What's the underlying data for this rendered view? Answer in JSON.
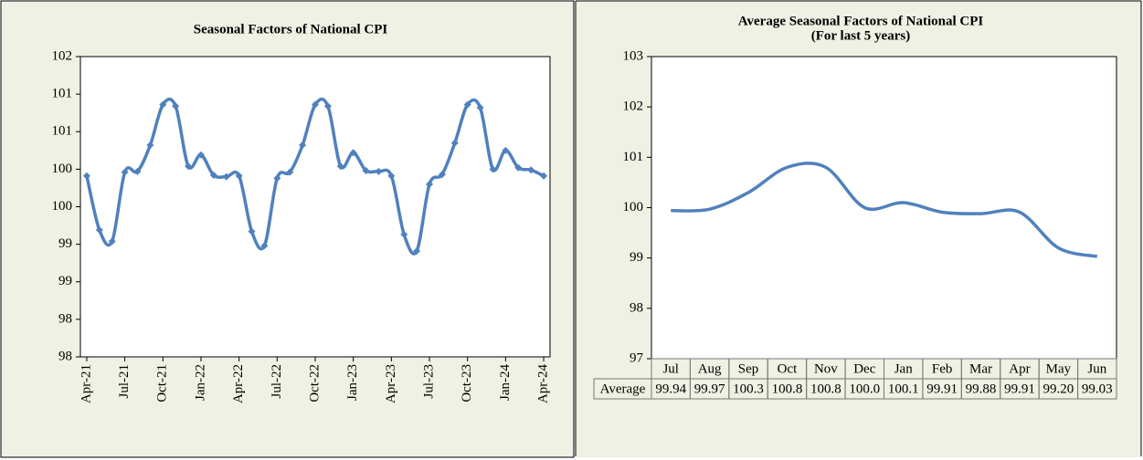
{
  "chart_data": [
    {
      "type": "line",
      "title": "Seasonal Factors of  National CPI",
      "categories": [
        "Apr-21",
        null,
        null,
        "Jul-21",
        null,
        null,
        "Oct-21",
        null,
        null,
        "Jan-22",
        null,
        null,
        "Apr-22",
        null,
        null,
        "Jul-22",
        null,
        null,
        "Oct-22",
        null,
        null,
        "Jan-23",
        null,
        null,
        "Apr-23",
        null,
        null,
        "Jul-23",
        null,
        null,
        "Oct-23",
        null,
        null,
        "Jan-24",
        null,
        null,
        "Apr-24"
      ],
      "values": [
        100.41,
        99.69,
        99.54,
        100.46,
        100.47,
        100.82,
        101.36,
        101.34,
        100.54,
        100.69,
        100.42,
        100.4,
        100.41,
        99.67,
        99.48,
        100.38,
        100.46,
        100.82,
        101.36,
        101.34,
        100.54,
        100.72,
        100.48,
        100.47,
        100.41,
        99.63,
        99.41,
        100.3,
        100.43,
        100.85,
        101.36,
        101.32,
        100.5,
        100.75,
        100.52,
        100.49,
        100.41
      ],
      "color": "#4f81bd",
      "marker": "diamond",
      "smooth": true,
      "ylim": [
        98,
        102
      ],
      "yticks": [
        98,
        {
          "value": 98.5,
          "label": "98"
        },
        99,
        {
          "value": 99.5,
          "label": "99"
        },
        100,
        {
          "value": 100.5,
          "label": "100"
        },
        101,
        {
          "value": 101.5,
          "label": "101"
        },
        102
      ]
    },
    {
      "type": "line",
      "title": "Average Seasonal Factors of  National CPI",
      "subtitle": "(For last 5 years)",
      "categories": [
        "Jul",
        "Aug",
        "Sep",
        "Oct",
        "Nov",
        "Dec",
        "Jan",
        "Feb",
        "Mar",
        "Apr",
        "May",
        "Jun"
      ],
      "series": [
        {
          "name": "Average",
          "color": "#4f81bd",
          "values": [
            99.94,
            99.97,
            100.3,
            100.8,
            100.8,
            100.0,
            100.1,
            99.91,
            99.88,
            99.91,
            99.2,
            99.03
          ],
          "value_labels": [
            "99.94",
            "99.97",
            "100.3",
            "100.8",
            "100.8",
            "100.0",
            "100.1",
            "99.91",
            "99.88",
            "99.91",
            "99.20",
            "99.03"
          ]
        }
      ],
      "smooth": true,
      "data_table": true,
      "ylim": [
        97,
        103
      ],
      "yticks": [
        97,
        98,
        99,
        100,
        101,
        102,
        103
      ]
    }
  ]
}
